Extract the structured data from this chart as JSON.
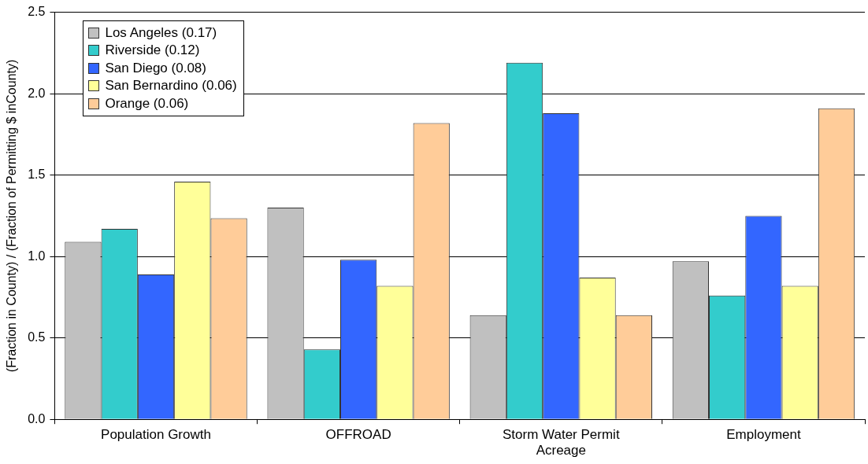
{
  "chart_data": {
    "type": "bar",
    "ylabel": "(Fraction in County) / (Fraction of Permitting $ inCounty)",
    "categories": [
      "Population Growth",
      "OFFROAD",
      "Storm Water Permit Acreage",
      "Employment"
    ],
    "series": [
      {
        "name": "Los Angeles (0.17)",
        "color": "#c0c0c0",
        "values": [
          1.09,
          1.3,
          0.64,
          0.97
        ]
      },
      {
        "name": "Riverside (0.12)",
        "color": "#33cccc",
        "values": [
          1.17,
          0.43,
          2.19,
          0.76
        ]
      },
      {
        "name": "San Diego (0.08)",
        "color": "#3366ff",
        "values": [
          0.89,
          0.98,
          1.88,
          1.25
        ]
      },
      {
        "name": "San Bernardino (0.06)",
        "color": "#ffff99",
        "values": [
          1.46,
          0.82,
          0.87,
          0.82
        ]
      },
      {
        "name": "Orange (0.06)",
        "color": "#ffcc99",
        "values": [
          1.235,
          1.82,
          0.64,
          1.91
        ]
      }
    ],
    "ylim": [
      0,
      2.5
    ],
    "yticks": [
      {
        "value": 0,
        "label": "0.0"
      },
      {
        "value": 0.5,
        "label": "0.5"
      },
      {
        "value": 1,
        "label": "1.0"
      },
      {
        "value": 1.5,
        "label": "1.5"
      },
      {
        "value": 2,
        "label": "2.0"
      },
      {
        "value": 2.5,
        "label": "2.5"
      }
    ],
    "grid": "y",
    "legend": "top left"
  }
}
